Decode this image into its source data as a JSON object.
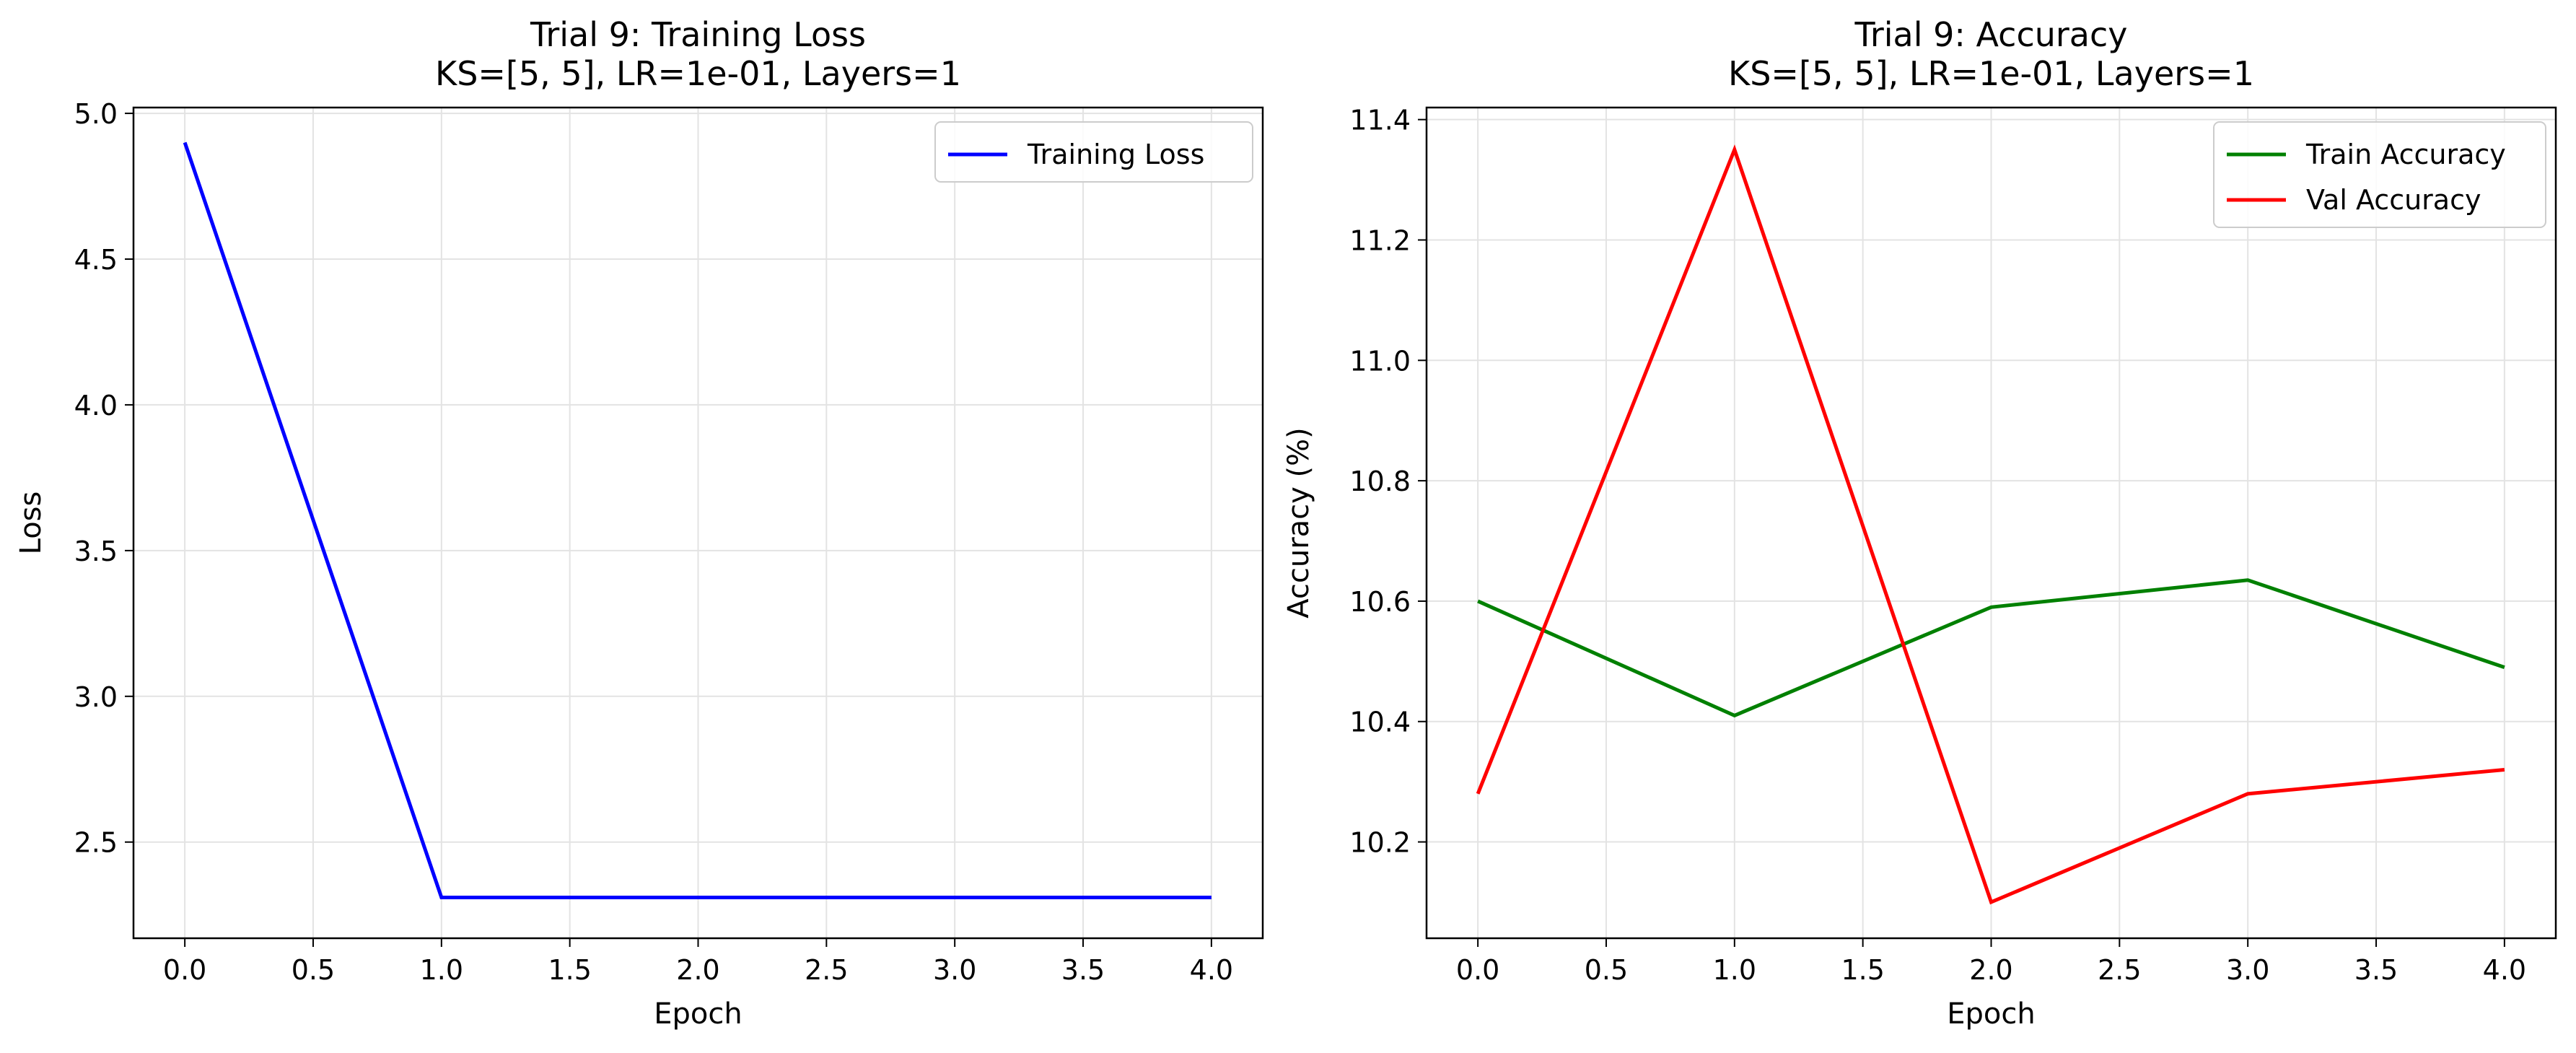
{
  "chart_data": [
    {
      "type": "line",
      "title": "Trial 9: Training Loss",
      "subtitle": "KS=[5, 5], LR=1e-01, Layers=1",
      "xlabel": "Epoch",
      "ylabel": "Loss",
      "xlim": [
        -0.2,
        4.2
      ],
      "ylim": [
        2.17,
        5.02
      ],
      "xticks": [
        "0.0",
        "0.5",
        "1.0",
        "1.5",
        "2.0",
        "2.5",
        "3.0",
        "3.5",
        "4.0"
      ],
      "yticks": [
        "2.5",
        "3.0",
        "3.5",
        "4.0",
        "4.5",
        "5.0"
      ],
      "grid": true,
      "legend_position": "top-right",
      "series": [
        {
          "name": "Training Loss",
          "color": "#0000ff",
          "x": [
            0,
            1,
            2,
            3,
            4
          ],
          "y": [
            4.9,
            2.31,
            2.31,
            2.31,
            2.31
          ]
        }
      ]
    },
    {
      "type": "line",
      "title": "Trial 9: Accuracy",
      "subtitle": "KS=[5, 5], LR=1e-01, Layers=1",
      "xlabel": "Epoch",
      "ylabel": "Accuracy (%)",
      "xlim": [
        -0.2,
        4.2
      ],
      "ylim": [
        10.04,
        11.42
      ],
      "xticks": [
        "0.0",
        "0.5",
        "1.0",
        "1.5",
        "2.0",
        "2.5",
        "3.0",
        "3.5",
        "4.0"
      ],
      "yticks": [
        "10.2",
        "10.4",
        "10.6",
        "10.8",
        "11.0",
        "11.2",
        "11.4"
      ],
      "grid": true,
      "legend_position": "top-right",
      "series": [
        {
          "name": "Train Accuracy",
          "color": "#008000",
          "x": [
            0,
            1,
            2,
            3,
            4
          ],
          "y": [
            10.6,
            10.41,
            10.59,
            10.635,
            10.49
          ]
        },
        {
          "name": "Val Accuracy",
          "color": "#ff0000",
          "x": [
            0,
            1,
            2,
            3,
            4
          ],
          "y": [
            10.28,
            11.35,
            10.1,
            10.28,
            10.32
          ]
        }
      ]
    }
  ]
}
